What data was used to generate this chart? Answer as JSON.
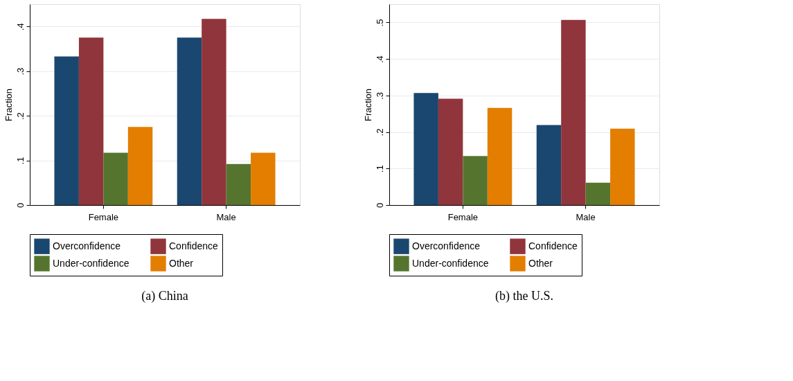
{
  "chart_data": [
    {
      "type": "bar",
      "title": "(a) China",
      "ylabel": "Fraction",
      "categories": [
        "Female",
        "Male"
      ],
      "ylim": [
        0,
        0.45
      ],
      "yticks": [
        {
          "value": 0,
          "label": "0"
        },
        {
          "value": 0.1,
          "label": ".1"
        },
        {
          "value": 0.2,
          "label": ".2"
        },
        {
          "value": 0.3,
          "label": ".3"
        },
        {
          "value": 0.4,
          "label": ".4"
        }
      ],
      "grid": "y",
      "legend": "bottom",
      "series": [
        {
          "name": "Overconfidence",
          "color": "#1a476f",
          "values": [
            0.333,
            0.375
          ]
        },
        {
          "name": "Confidence",
          "color": "#90353b",
          "values": [
            0.375,
            0.417
          ]
        },
        {
          "name": "Under-confidence",
          "color": "#55752f",
          "values": [
            0.117,
            0.092
          ]
        },
        {
          "name": "Other",
          "color": "#e37e00",
          "values": [
            0.175,
            0.117
          ]
        }
      ]
    },
    {
      "type": "bar",
      "title": "(b) the U.S.",
      "ylabel": "Fraction",
      "categories": [
        "Female",
        "Male"
      ],
      "ylim": [
        0,
        0.55
      ],
      "yticks": [
        {
          "value": 0,
          "label": "0"
        },
        {
          "value": 0.1,
          "label": ".1"
        },
        {
          "value": 0.2,
          "label": ".2"
        },
        {
          "value": 0.3,
          "label": ".3"
        },
        {
          "value": 0.4,
          "label": ".4"
        },
        {
          "value": 0.5,
          "label": ".5"
        }
      ],
      "grid": "y",
      "legend": "bottom",
      "series": [
        {
          "name": "Overconfidence",
          "color": "#1a476f",
          "values": [
            0.307,
            0.219
          ]
        },
        {
          "name": "Confidence",
          "color": "#90353b",
          "values": [
            0.291,
            0.507
          ]
        },
        {
          "name": "Under-confidence",
          "color": "#55752f",
          "values": [
            0.134,
            0.061
          ]
        },
        {
          "name": "Other",
          "color": "#e37e00",
          "values": [
            0.266,
            0.209
          ]
        }
      ]
    }
  ]
}
